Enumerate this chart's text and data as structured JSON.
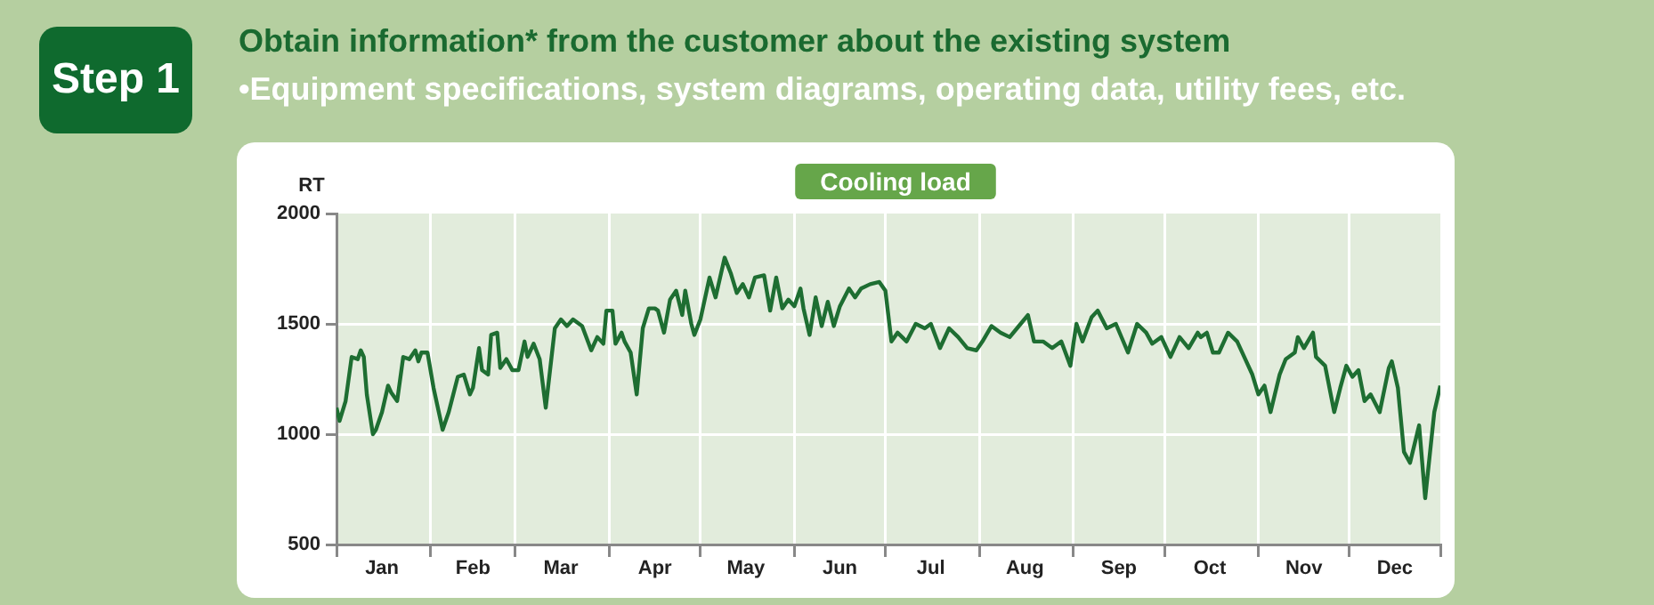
{
  "chart_data": {
    "type": "line",
    "title": "Obtain information* from the customer about the existing system",
    "subtitle": "•Equipment specifications, system diagrams, operating data, utility fees, etc.",
    "ylabel": "RT",
    "annotations": [
      "Step 1",
      "Cooling load"
    ],
    "x": [
      "--01-01",
      "--01-02",
      "--01-04",
      "--01-06",
      "--01-08",
      "--01-09",
      "--01-10",
      "--01-11",
      "--01-13",
      "--01-14",
      "--01-16",
      "--01-18",
      "--01-19",
      "--01-21",
      "--01-23",
      "--01-25",
      "--01-27",
      "--01-28",
      "--01-29",
      "--01-31",
      "--02-02",
      "--02-05",
      "--02-07",
      "--02-10",
      "--02-12",
      "--02-14",
      "--02-15",
      "--02-17",
      "--02-18",
      "--02-20",
      "--02-21",
      "--02-23",
      "--02-24",
      "--02-26",
      "--02-28",
      "--03-02",
      "--03-04",
      "--03-05",
      "--03-07",
      "--03-09",
      "--03-11",
      "--03-14",
      "--03-16",
      "--03-18",
      "--03-20",
      "--03-23",
      "--03-26",
      "--03-28",
      "--03-30",
      "--03-31",
      "--04-02",
      "--04-03",
      "--04-05",
      "--04-06",
      "--04-08",
      "--04-10",
      "--04-12",
      "--04-14",
      "--04-16",
      "--04-17",
      "--04-19",
      "--04-21",
      "--04-23",
      "--04-25",
      "--04-26",
      "--04-28",
      "--04-29",
      "--05-01",
      "--05-04",
      "--05-06",
      "--05-09",
      "--05-11",
      "--05-13",
      "--05-15",
      "--05-17",
      "--05-19",
      "--05-22",
      "--05-24",
      "--05-26",
      "--05-28",
      "--05-30",
      "--06-01",
      "--06-03",
      "--06-04",
      "--06-06",
      "--06-08",
      "--06-10",
      "--06-12",
      "--06-14",
      "--06-16",
      "--06-19",
      "--06-21",
      "--06-23",
      "--06-26",
      "--06-29",
      "--07-01",
      "--07-03",
      "--07-05",
      "--07-08",
      "--07-11",
      "--07-14",
      "--07-16",
      "--07-19",
      "--07-22",
      "--07-25",
      "--07-28",
      "--07-31",
      "--08-02",
      "--08-05",
      "--08-08",
      "--08-11",
      "--08-14",
      "--08-17",
      "--08-19",
      "--08-22",
      "--08-25",
      "--08-28",
      "--08-31",
      "--09-01",
      "--09-02",
      "--09-04",
      "--09-07",
      "--09-09",
      "--09-12",
      "--09-15",
      "--09-19",
      "--09-22",
      "--09-25",
      "--09-27",
      "--09-30",
      "--10-03",
      "--10-06",
      "--10-09",
      "--10-12",
      "--10-13",
      "--10-15",
      "--10-17",
      "--10-19",
      "--10-22",
      "--10-25",
      "--10-28",
      "--10-30",
      "--11-01",
      "--11-03",
      "--11-05",
      "--11-08",
      "--11-10",
      "--11-13",
      "--11-14",
      "--11-16",
      "--11-19",
      "--11-20",
      "--11-23",
      "--11-26",
      "--11-28",
      "--11-30",
      "--12-02",
      "--12-04",
      "--12-06",
      "--12-08",
      "--12-11",
      "--12-14",
      "--12-15",
      "--12-17",
      "--12-19",
      "--12-21",
      "--12-24",
      "--12-26",
      "--12-29",
      "--12-31"
    ],
    "series": [
      {
        "color": "#1e6e32",
        "values": [
          1120,
          1060,
          1150,
          1350,
          1340,
          1380,
          1350,
          1180,
          1000,
          1020,
          1100,
          1220,
          1190,
          1150,
          1350,
          1340,
          1380,
          1330,
          1370,
          1370,
          1210,
          1020,
          1100,
          1260,
          1270,
          1180,
          1210,
          1390,
          1290,
          1270,
          1450,
          1460,
          1300,
          1340,
          1290,
          1290,
          1420,
          1350,
          1410,
          1340,
          1120,
          1480,
          1520,
          1490,
          1520,
          1490,
          1380,
          1440,
          1410,
          1560,
          1560,
          1410,
          1460,
          1420,
          1370,
          1180,
          1480,
          1570,
          1570,
          1560,
          1460,
          1610,
          1650,
          1540,
          1650,
          1500,
          1450,
          1520,
          1710,
          1620,
          1800,
          1730,
          1640,
          1680,
          1620,
          1710,
          1720,
          1560,
          1710,
          1570,
          1610,
          1580,
          1660,
          1570,
          1450,
          1620,
          1490,
          1600,
          1490,
          1580,
          1660,
          1620,
          1660,
          1680,
          1690,
          1650,
          1420,
          1460,
          1420,
          1500,
          1480,
          1500,
          1390,
          1480,
          1440,
          1390,
          1380,
          1420,
          1490,
          1460,
          1440,
          1490,
          1540,
          1420,
          1420,
          1390,
          1420,
          1310,
          1410,
          1500,
          1420,
          1530,
          1560,
          1480,
          1500,
          1370,
          1500,
          1460,
          1410,
          1440,
          1350,
          1440,
          1390,
          1460,
          1440,
          1460,
          1370,
          1370,
          1460,
          1420,
          1330,
          1270,
          1180,
          1220,
          1100,
          1270,
          1340,
          1370,
          1440,
          1390,
          1460,
          1350,
          1310,
          1100,
          1210,
          1310,
          1260,
          1290,
          1150,
          1180,
          1100,
          1300,
          1330,
          1210,
          920,
          870,
          1040,
          710,
          1100,
          1220
        ]
      }
    ],
    "xlim": [
      "--01-01",
      "--12-31"
    ],
    "xticks": [
      {
        "value": "--01-01",
        "label": null
      },
      {
        "value": "--01-16",
        "label": "Jan"
      },
      {
        "value": "--02-01",
        "label": null
      },
      {
        "value": "--02-15",
        "label": "Feb"
      },
      {
        "value": "--03-01",
        "label": null
      },
      {
        "value": "--03-16",
        "label": "Mar"
      },
      {
        "value": "--04-01",
        "label": null
      },
      {
        "value": "--04-16",
        "label": "Apr"
      },
      {
        "value": "--05-01",
        "label": null
      },
      {
        "value": "--05-16",
        "label": "May"
      },
      {
        "value": "--06-01",
        "label": null
      },
      {
        "value": "--06-16",
        "label": "Jun"
      },
      {
        "value": "--07-01",
        "label": null
      },
      {
        "value": "--07-16",
        "label": "Jul"
      },
      {
        "value": "--08-01",
        "label": null
      },
      {
        "value": "--08-16",
        "label": "Aug"
      },
      {
        "value": "--09-01",
        "label": null
      },
      {
        "value": "--09-16",
        "label": "Sep"
      },
      {
        "value": "--10-01",
        "label": null
      },
      {
        "value": "--10-16",
        "label": "Oct"
      },
      {
        "value": "--11-01",
        "label": null
      },
      {
        "value": "--11-16",
        "label": "Nov"
      },
      {
        "value": "--12-01",
        "label": null
      },
      {
        "value": "--12-16",
        "label": "Dec"
      },
      {
        "value": "--12-31",
        "label": null
      }
    ],
    "ylim": [
      500,
      2000
    ],
    "yticks": [
      500,
      1000,
      1500,
      2000
    ],
    "grid": true,
    "marker": "none",
    "line_style": "solid"
  }
}
